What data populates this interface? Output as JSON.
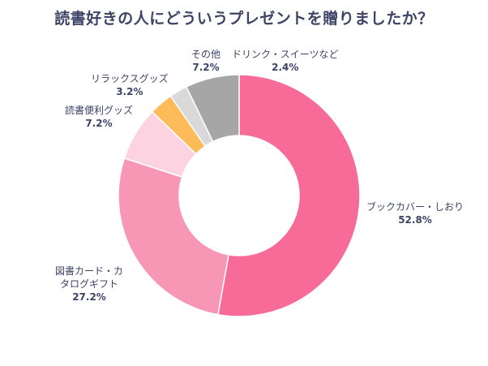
{
  "chart_data": {
    "type": "pie",
    "subtype": "donut",
    "title": "読書好きの人にどういうプレゼントを贈りましたか？",
    "start_angle": "top",
    "direction": "clockwise",
    "slices": [
      {
        "label": "ブックカバー・しおり",
        "value": 52.8,
        "display": "52.8%",
        "color": "#f76b98"
      },
      {
        "label": "図書カード・カタログギフト",
        "label_lines": [
          "図書カード・カ",
          "タログギフト"
        ],
        "value": 27.2,
        "display": "27.2%",
        "color": "#f797b5"
      },
      {
        "label": "読書便利グッズ",
        "value": 7.2,
        "display": "7.2%",
        "color": "#fed3e1"
      },
      {
        "label": "リラックスグッズ",
        "value": 3.2,
        "display": "3.2%",
        "color": "#febb5a"
      },
      {
        "label": "ドリンク・スイーツなど",
        "value": 2.4,
        "display": "2.4%",
        "color": "#d9d9d9"
      },
      {
        "label": "その他",
        "value": 7.2,
        "display": "7.2%",
        "color": "#a6a6a6"
      }
    ]
  }
}
